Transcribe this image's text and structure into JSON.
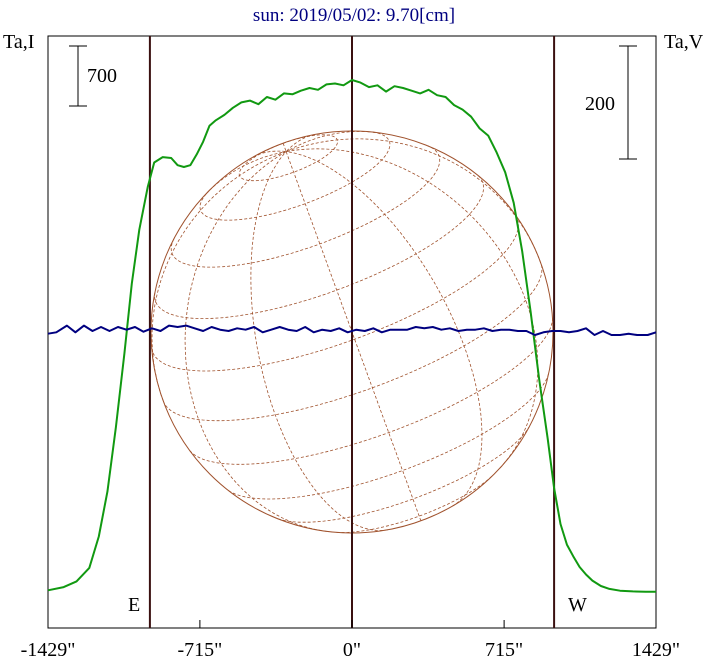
{
  "chart_data": {
    "type": "line",
    "title": "sun: 2019/05/02: 9.70[cm]",
    "left_axis_label": "Ta,I",
    "right_axis_label": "Ta,V",
    "left_scale_bar": "700",
    "right_scale_bar": "200",
    "limb_labels": {
      "east": "E",
      "west": "W"
    },
    "x_ticks": [
      "-1429\"",
      "-715\"",
      "0\"",
      "715\"",
      "1429\""
    ],
    "x_tick_values": [
      -1429,
      -715,
      0,
      715,
      1429
    ],
    "xlim": [
      -1429,
      1429
    ],
    "solar_radius_arcsec": 950,
    "vertical_markers_arcsec": [
      -950,
      0,
      950
    ],
    "colors": {
      "intensity": "#119911",
      "polarization": "#000080",
      "disk": "#a0522d",
      "markers": "#3a1010",
      "title": "#000080"
    },
    "series": [
      {
        "name": "I",
        "x": [
          -1429,
          -1355,
          -1295,
          -1235,
          -1190,
          -1150,
          -1110,
          -1070,
          -1035,
          -1000,
          -960,
          -930,
          -890,
          -850,
          -820,
          -790,
          -760,
          -730,
          -700,
          -670,
          -640,
          -600,
          -560,
          -520,
          -480,
          -440,
          -400,
          -360,
          -320,
          -280,
          -240,
          -200,
          -160,
          -120,
          -80,
          -40,
          0,
          40,
          80,
          120,
          160,
          200,
          240,
          280,
          320,
          360,
          400,
          440,
          480,
          520,
          560,
          600,
          640,
          680,
          720,
          760,
          800,
          840,
          880,
          920,
          950,
          980,
          1010,
          1040,
          1070,
          1100,
          1130,
          1170,
          1210,
          1260,
          1320,
          1380,
          1429
        ],
        "values": [
          10,
          28,
          60,
          135,
          310,
          560,
          920,
          1330,
          1720,
          2020,
          2260,
          2395,
          2425,
          2420,
          2380,
          2370,
          2380,
          2440,
          2510,
          2600,
          2630,
          2660,
          2700,
          2730,
          2740,
          2720,
          2760,
          2745,
          2780,
          2775,
          2795,
          2810,
          2800,
          2830,
          2835,
          2825,
          2855,
          2840,
          2815,
          2825,
          2790,
          2820,
          2810,
          2795,
          2780,
          2800,
          2770,
          2760,
          2715,
          2690,
          2650,
          2585,
          2545,
          2450,
          2340,
          2170,
          1900,
          1560,
          1185,
          855,
          580,
          380,
          265,
          200,
          140,
          98,
          64,
          34,
          18,
          8,
          4,
          2,
          2
        ]
      },
      {
        "name": "V",
        "x": [
          -1429,
          -1390,
          -1340,
          -1300,
          -1260,
          -1220,
          -1180,
          -1140,
          -1100,
          -1060,
          -1020,
          -980,
          -940,
          -900,
          -860,
          -820,
          -780,
          -740,
          -700,
          -660,
          -620,
          -580,
          -540,
          -500,
          -460,
          -420,
          -380,
          -340,
          -300,
          -260,
          -220,
          -180,
          -140,
          -100,
          -60,
          -20,
          20,
          60,
          100,
          140,
          180,
          220,
          260,
          300,
          340,
          380,
          420,
          460,
          500,
          540,
          580,
          620,
          660,
          700,
          740,
          780,
          820,
          860,
          900,
          940,
          980,
          1020,
          1060,
          1100,
          1140,
          1180,
          1220,
          1260,
          1300,
          1340,
          1390,
          1429
        ],
        "values": [
          0,
          2,
          12,
          2,
          12,
          4,
          10,
          4,
          10,
          6,
          10,
          3,
          8,
          4,
          12,
          10,
          12,
          8,
          4,
          10,
          6,
          4,
          8,
          6,
          10,
          2,
          6,
          10,
          6,
          4,
          10,
          2,
          6,
          4,
          8,
          2,
          6,
          4,
          8,
          2,
          6,
          6,
          6,
          10,
          8,
          10,
          6,
          8,
          4,
          6,
          6,
          8,
          4,
          6,
          6,
          4,
          4,
          -2,
          2,
          4,
          4,
          2,
          4,
          8,
          -2,
          4,
          -2,
          -2,
          0,
          -2,
          -2,
          2
        ]
      }
    ],
    "ylim_I": [
      -200,
      3100
    ],
    "ylim_V": [
      -440,
      445
    ]
  }
}
